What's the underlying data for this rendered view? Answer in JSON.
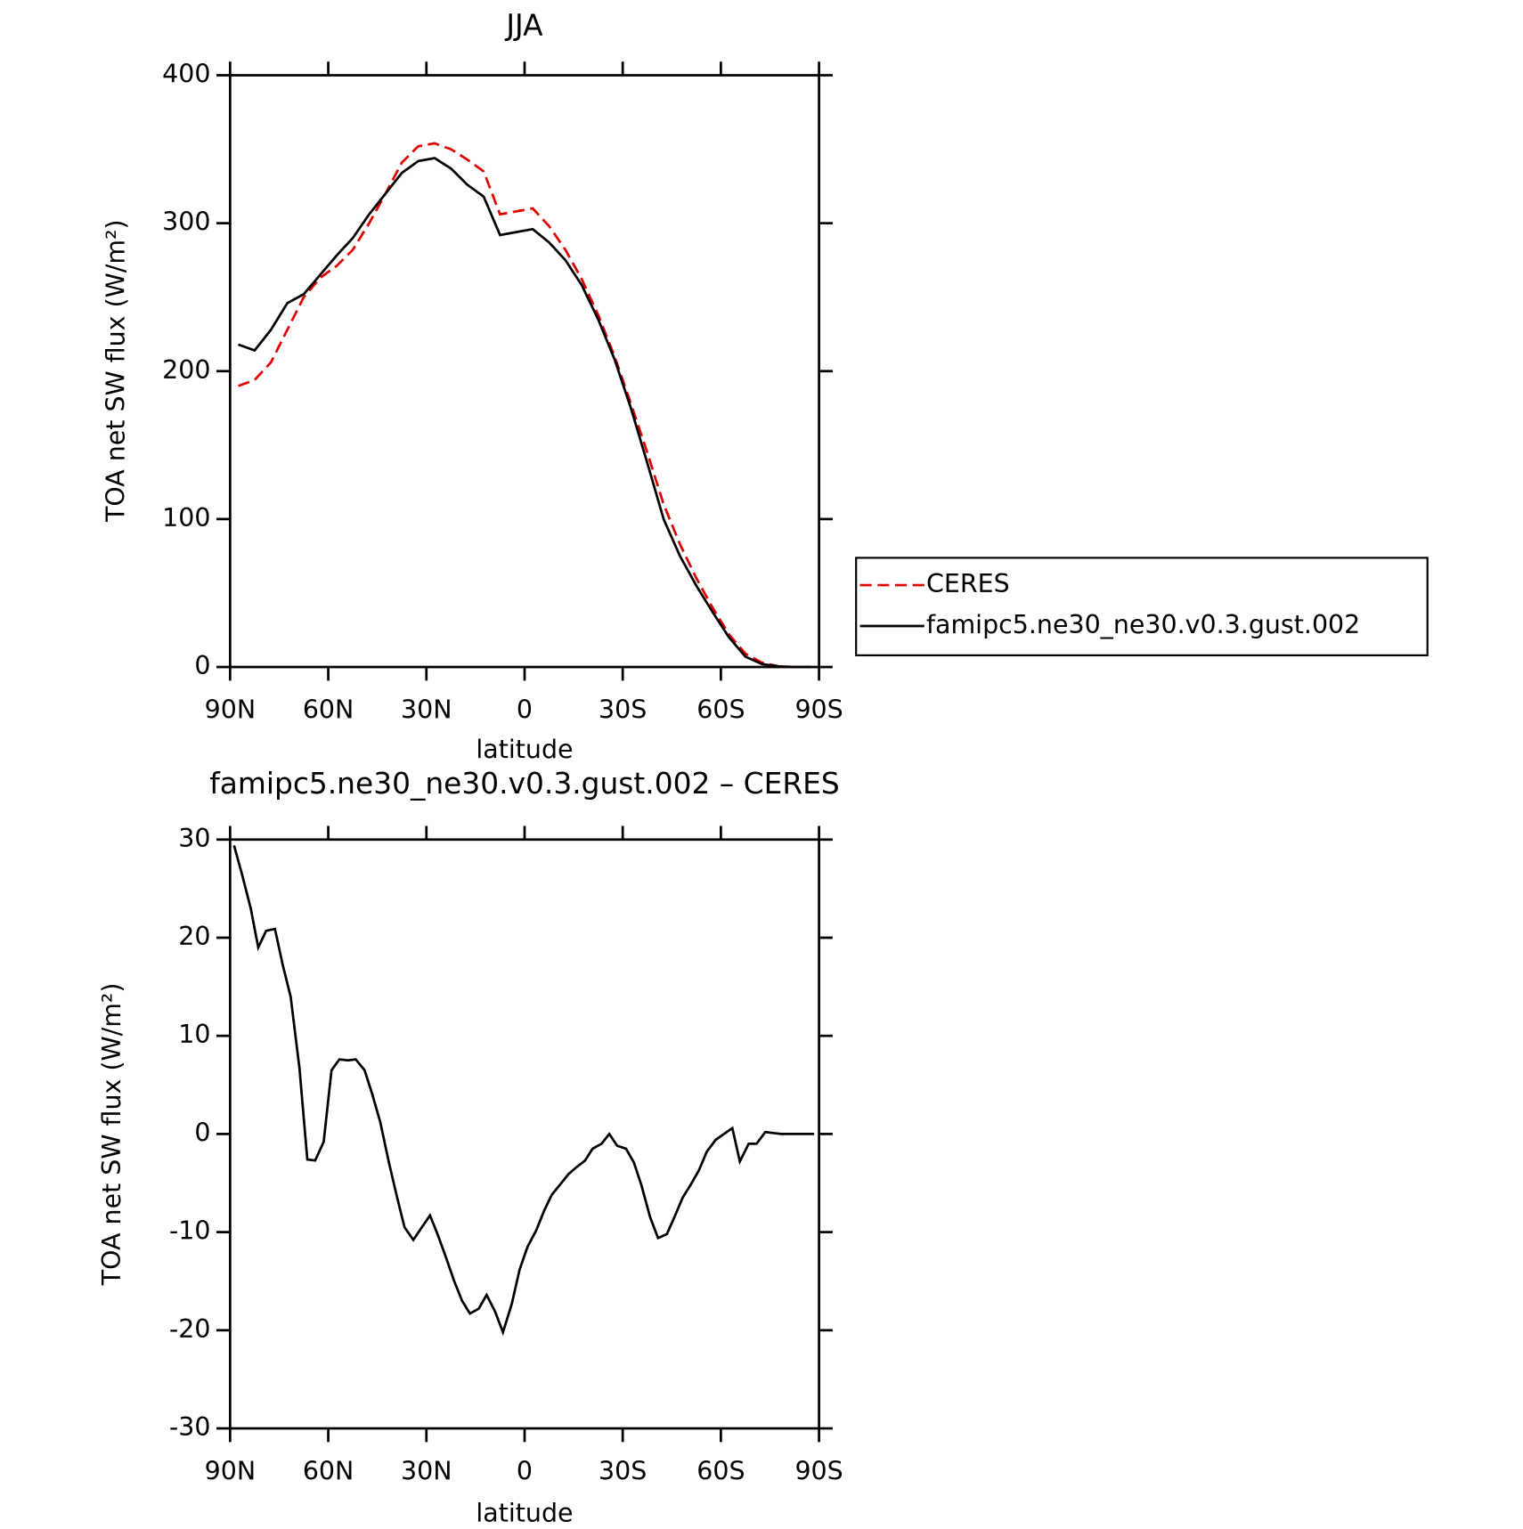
{
  "chart_data": [
    {
      "type": "line",
      "title": "JJA",
      "xlabel": "latitude",
      "ylabel": "TOA net SW flux (W/m²)",
      "xlim": [
        90,
        -90
      ],
      "xticks": [
        {
          "value": 90,
          "label": "90N"
        },
        {
          "value": 60,
          "label": "60N"
        },
        {
          "value": 30,
          "label": "30N"
        },
        0,
        {
          "value": -30,
          "label": "30S"
        },
        {
          "value": -60,
          "label": "60S"
        },
        {
          "value": -90,
          "label": "90S"
        }
      ],
      "ylim": [
        0,
        400
      ],
      "yticks": [
        0,
        100,
        200,
        300,
        400
      ],
      "legend": "right",
      "x": [
        87.5,
        82.5,
        77.5,
        72.5,
        67.5,
        62.5,
        57.5,
        52.5,
        47.5,
        42.5,
        37.5,
        32.5,
        27.5,
        22.5,
        17.5,
        12.5,
        7.5,
        2.5,
        -2.5,
        -7.5,
        -12.5,
        -17.5,
        -22.5,
        -27.5,
        -32.5,
        -37.5,
        -42.5,
        -47.5,
        -52.5,
        -57.5,
        -62.5,
        -67.5,
        -72.5,
        -77.5,
        -82.5,
        -87.5
      ],
      "series": [
        {
          "name": "CERES",
          "color": "#e00000",
          "dash": true,
          "values": [
            190,
            194,
            206,
            228,
            250,
            263,
            271,
            282,
            300,
            320,
            341,
            352,
            354,
            350,
            343,
            335,
            306,
            308,
            310,
            298,
            282,
            262,
            238,
            210,
            178,
            145,
            110,
            83,
            60,
            40,
            22,
            9,
            3,
            0.5,
            0,
            0
          ]
        },
        {
          "name": "famipc5.ne30_ne30.v0.3.gust.002",
          "color": "#000000",
          "dash": false,
          "values": [
            218,
            214,
            228,
            246,
            252,
            265,
            278,
            290,
            306,
            320,
            334,
            342,
            344,
            337,
            326,
            318,
            292,
            294,
            296,
            287,
            275,
            258,
            235,
            208,
            175,
            138,
            100,
            75,
            55,
            37,
            20,
            7,
            2,
            0.5,
            0,
            0
          ]
        }
      ]
    },
    {
      "type": "line",
      "title": "famipc5.ne30_ne30.v0.3.gust.002 – CERES",
      "xlabel": "latitude",
      "ylabel": "TOA net SW flux (W/m²)",
      "xlim": [
        90,
        -90
      ],
      "xticks": [
        {
          "value": 90,
          "label": "90N"
        },
        {
          "value": 60,
          "label": "60N"
        },
        {
          "value": 30,
          "label": "30N"
        },
        0,
        {
          "value": -30,
          "label": "30S"
        },
        {
          "value": -60,
          "label": "60S"
        },
        {
          "value": -90,
          "label": "90S"
        }
      ],
      "ylim": [
        -30,
        30
      ],
      "yticks": [
        -30,
        -20,
        -10,
        0,
        10,
        20,
        30
      ],
      "color": "#000000",
      "x": [
        88.8,
        86.4,
        83.7,
        81.4,
        79,
        76.3,
        73.9,
        71.5,
        68.8,
        66.4,
        64,
        61.4,
        59,
        56.6,
        54,
        51.6,
        48.9,
        46.5,
        44.1,
        41.4,
        39,
        36.7,
        34,
        31.6,
        28.9,
        26.5,
        24.1,
        21.5,
        19.1,
        16.7,
        14,
        11.6,
        9,
        6.6,
        3.9,
        1.5,
        -0.9,
        -3.6,
        -6,
        -8.3,
        -11,
        -13.4,
        -15.8,
        -18.5,
        -20.8,
        -23.5,
        -25.9,
        -28.3,
        -31,
        -33.4,
        -35.7,
        -38.4,
        -40.8,
        -43.5,
        -45.9,
        -48.3,
        -50.9,
        -53.3,
        -55.7,
        -58.4,
        -63.5,
        -65.8,
        -68.5,
        -70.9,
        -73.6,
        -75.9,
        -78.4,
        -81,
        -88.5
      ],
      "values": [
        29.4,
        26.5,
        23,
        19,
        20.7,
        20.9,
        17.2,
        14,
        6.7,
        -2.6,
        -2.7,
        -0.8,
        6.5,
        7.6,
        7.5,
        7.6,
        6.5,
        4,
        1.2,
        -3,
        -6.4,
        -9.5,
        -10.8,
        -9.6,
        -8.3,
        -10.3,
        -12.5,
        -15,
        -17,
        -18.3,
        -17.8,
        -16.4,
        -18.1,
        -20.2,
        -17.3,
        -13.8,
        -11.5,
        -9.8,
        -7.8,
        -6.2,
        -5.1,
        -4.1,
        -3.4,
        -2.7,
        -1.5,
        -1,
        0,
        -1.2,
        -1.5,
        -2.9,
        -5.2,
        -8.5,
        -10.6,
        -10.2,
        -8.4,
        -6.5,
        -5.1,
        -3.7,
        -1.8,
        -0.6,
        0.6,
        -2.8,
        -1,
        -1,
        0.2,
        0.1,
        0,
        0,
        0
      ]
    }
  ]
}
